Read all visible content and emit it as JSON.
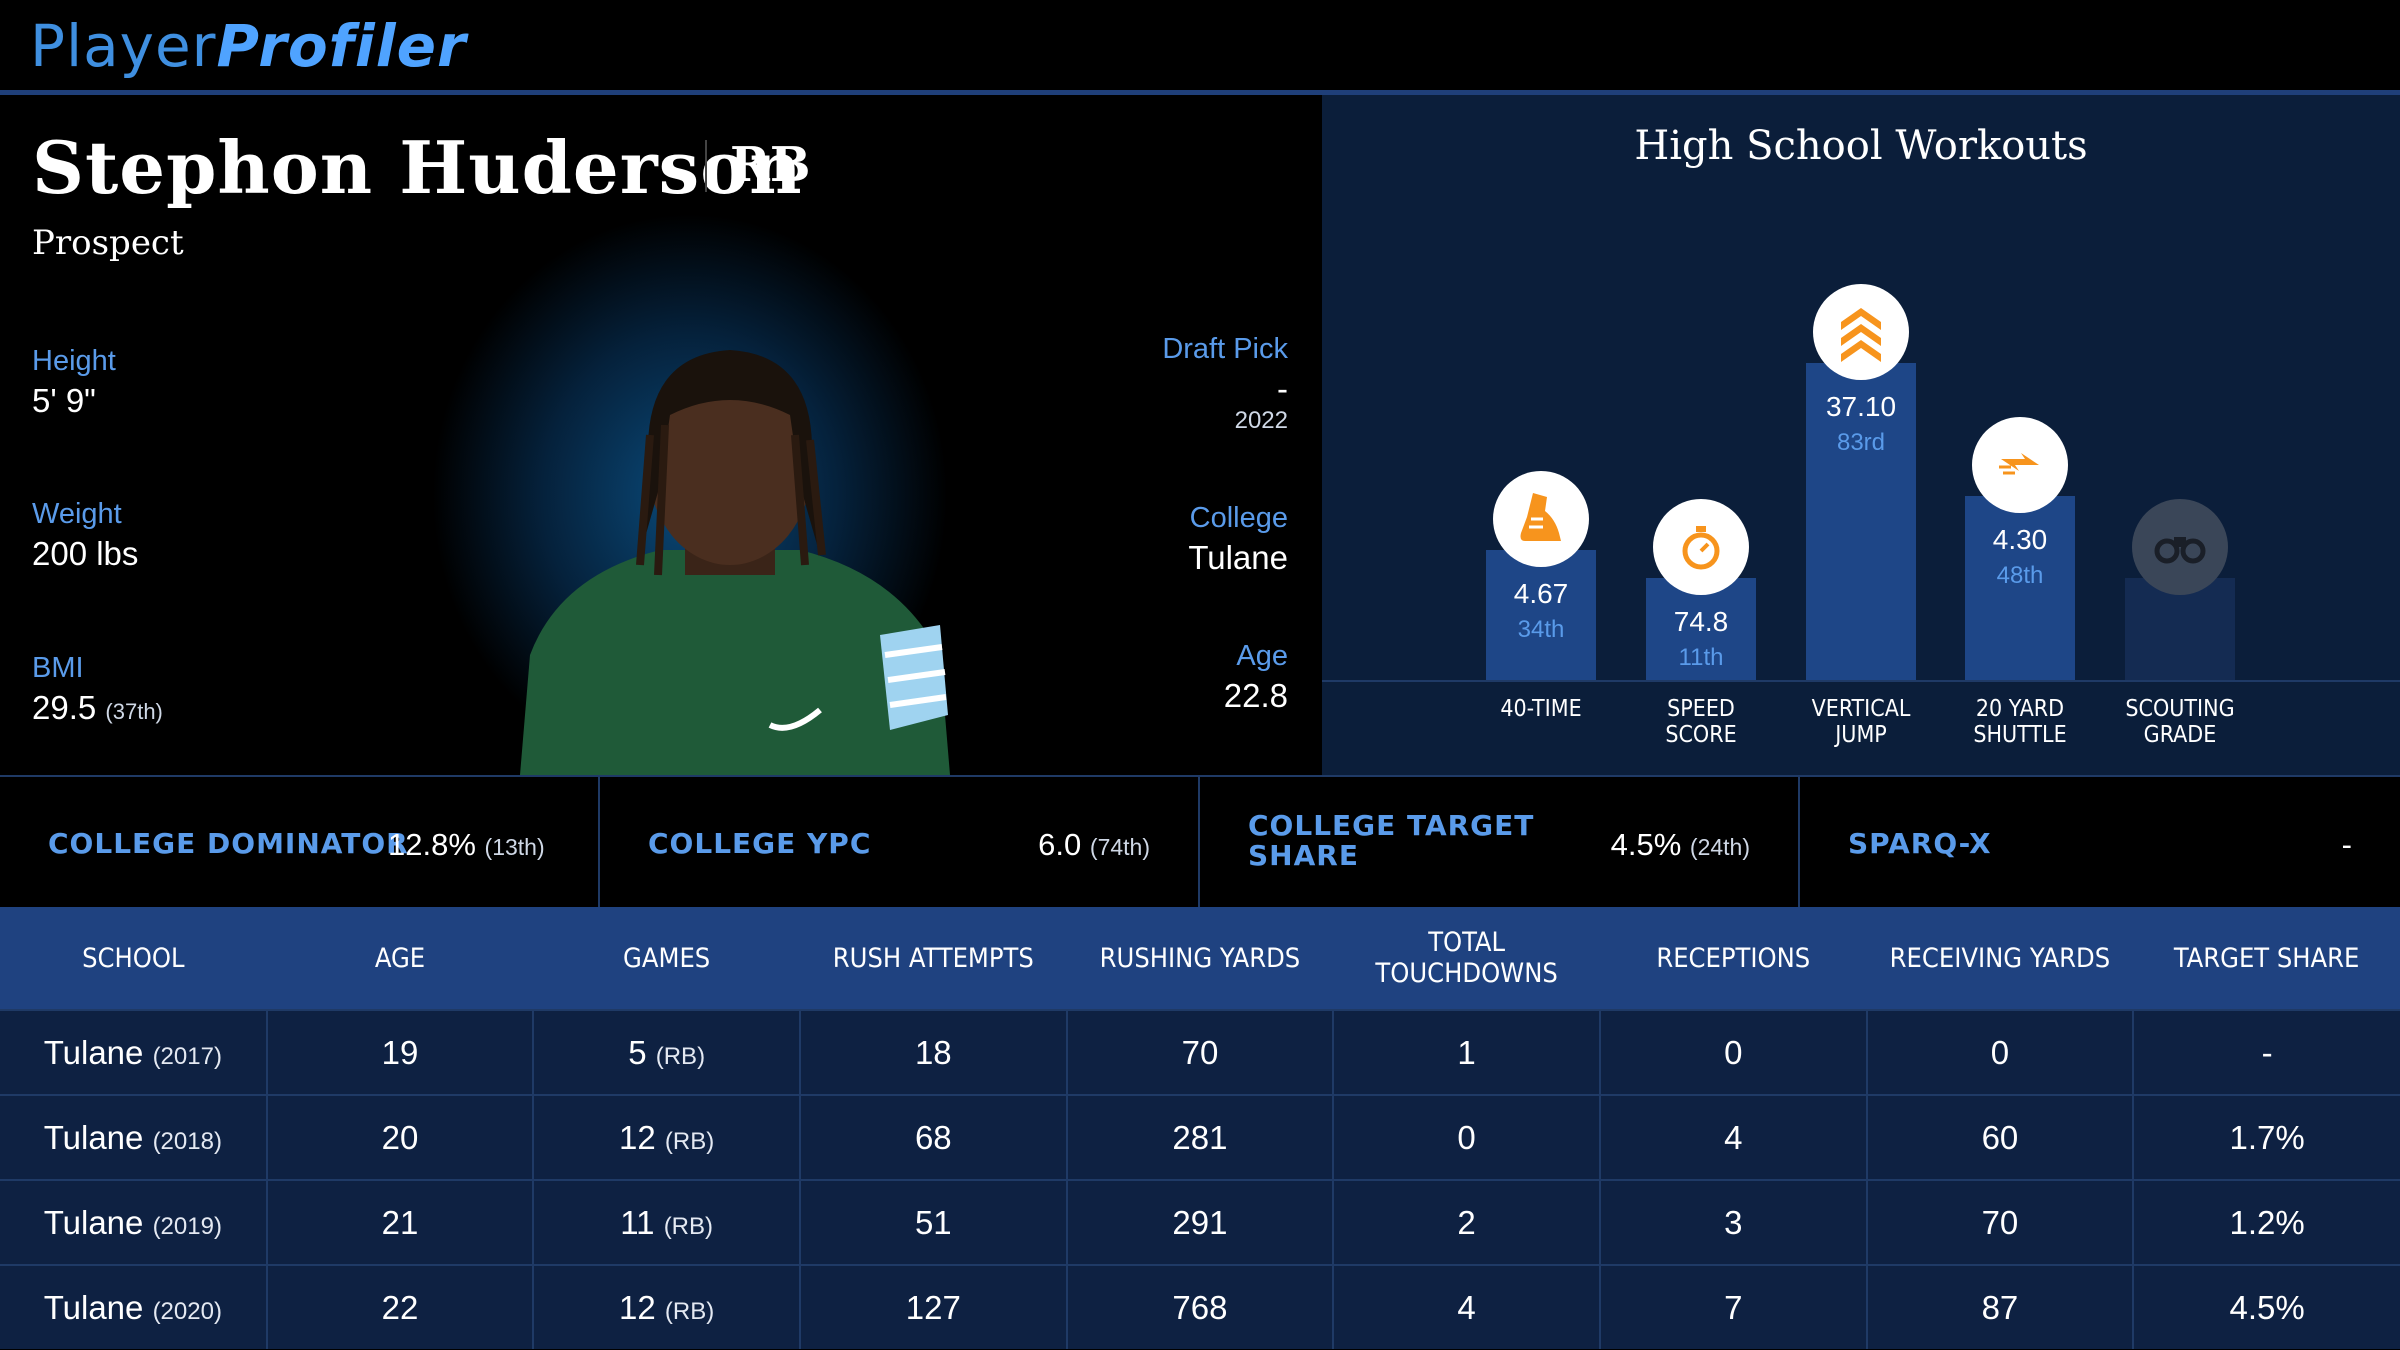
{
  "brand": {
    "part1": "Player",
    "part2": "Profiler"
  },
  "player": {
    "name": "Stephon Huderson",
    "position": "RB",
    "status": "Prospect",
    "height_label": "Height",
    "height": "5' 9\"",
    "weight_label": "Weight",
    "weight": "200 lbs",
    "bmi_label": "BMI",
    "bmi": "29.5",
    "bmi_rank": "(37th)",
    "draft_label": "Draft Pick",
    "draft_pick": "-",
    "draft_year": "2022",
    "college_label": "College",
    "college": "Tulane",
    "age_label": "Age",
    "age": "22.8"
  },
  "workouts": {
    "title": "High School Workouts",
    "items": [
      {
        "label1": "40-TIME",
        "label2": "",
        "value": "4.67",
        "rank": "34th",
        "icon": "running-shoe-icon",
        "percentile": 34
      },
      {
        "label1": "SPEED",
        "label2": "SCORE",
        "value": "74.8",
        "rank": "11th",
        "icon": "stopwatch-icon",
        "percentile": 11
      },
      {
        "label1": "VERTICAL",
        "label2": "JUMP",
        "value": "37.10",
        "rank": "83rd",
        "icon": "chevrons-up-icon",
        "percentile": 83
      },
      {
        "label1": "20 YARD",
        "label2": "SHUTTLE",
        "value": "4.30",
        "rank": "48th",
        "icon": "lightning-arrows-icon",
        "percentile": 48
      },
      {
        "label1": "SCOUTING",
        "label2": "GRADE",
        "value": "",
        "rank": "",
        "icon": "binoculars-icon",
        "percentile": null
      }
    ],
    "icon_color": "#f7941d"
  },
  "metrics": [
    {
      "label": "COLLEGE DOMINATOR",
      "value": "12.8%",
      "rank": "(13th)"
    },
    {
      "label": "COLLEGE YPC",
      "value": "6.0",
      "rank": "(74th)"
    },
    {
      "label": "COLLEGE TARGET SHARE",
      "value": "4.5%",
      "rank": "(24th)"
    },
    {
      "label": "SPARQ-X",
      "value": "-",
      "rank": ""
    }
  ],
  "table": {
    "headers": [
      "SCHOOL",
      "AGE",
      "GAMES",
      "RUSH ATTEMPTS",
      "RUSHING YARDS",
      "TOTAL TOUCHDOWNS",
      "RECEPTIONS",
      "RECEIVING YARDS",
      "TARGET SHARE"
    ],
    "rows": [
      {
        "school": "Tulane",
        "year": "(2017)",
        "age": "19",
        "games": "5",
        "games_pos": "(RB)",
        "rush_att": "18",
        "rush_yds": "70",
        "tds": "1",
        "rec": "0",
        "rec_yds": "0",
        "tgt": "-"
      },
      {
        "school": "Tulane",
        "year": "(2018)",
        "age": "20",
        "games": "12",
        "games_pos": "(RB)",
        "rush_att": "68",
        "rush_yds": "281",
        "tds": "0",
        "rec": "4",
        "rec_yds": "60",
        "tgt": "1.7%"
      },
      {
        "school": "Tulane",
        "year": "(2019)",
        "age": "21",
        "games": "11",
        "games_pos": "(RB)",
        "rush_att": "51",
        "rush_yds": "291",
        "tds": "2",
        "rec": "3",
        "rec_yds": "70",
        "tgt": "1.2%"
      },
      {
        "school": "Tulane",
        "year": "(2020)",
        "age": "22",
        "games": "12",
        "games_pos": "(RB)",
        "rush_att": "127",
        "rush_yds": "768",
        "tds": "4",
        "rec": "7",
        "rec_yds": "87",
        "tgt": "4.5%"
      }
    ]
  }
}
